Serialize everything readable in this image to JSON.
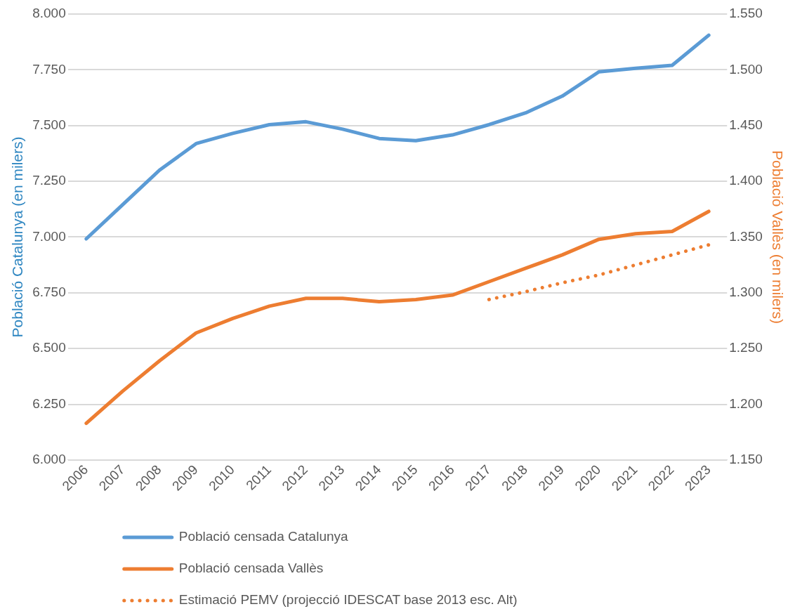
{
  "chart_data": {
    "type": "line",
    "categories": [
      "2006",
      "2007",
      "2008",
      "2009",
      "2010",
      "2011",
      "2012",
      "2013",
      "2014",
      "2015",
      "2016",
      "2017",
      "2018",
      "2019",
      "2020",
      "2021",
      "2022",
      "2023"
    ],
    "series": [
      {
        "name": "Població censada Catalunya",
        "color": "#5b9bd5",
        "line_style": "solid",
        "values": [
          6992,
          7146,
          7300,
          7419,
          7465,
          7504,
          7517,
          7484,
          7442,
          7432,
          7458,
          7504,
          7557,
          7632,
          7741,
          7757,
          7770,
          7905
        ]
      },
      {
        "name": "Població censada Vallès",
        "color": "#ed7d31",
        "axis": "y2",
        "line_style": "solid",
        "values": [
          1183,
          1212,
          1239,
          1264,
          1277,
          1288,
          1295,
          1295,
          1292,
          1294,
          1298,
          1310,
          1322,
          1334,
          1348,
          1353,
          1355,
          1373
        ]
      },
      {
        "name": "Estimació PEMV (projecció IDESCAT base 2013 esc. Alt)",
        "color": "#ed7d31",
        "axis": "y2",
        "line_style": "dotted",
        "values": [
          null,
          null,
          null,
          null,
          null,
          null,
          null,
          null,
          null,
          null,
          null,
          1294,
          1301,
          1309,
          1316,
          1325,
          1334,
          1343
        ]
      }
    ],
    "ylabel": "Població Catalunya (en milers)",
    "y2label": "Població Vallès (en milers)",
    "ylim": [
      6000,
      8000
    ],
    "yticks": [
      {
        "value": 6000,
        "label": "6.000"
      },
      {
        "value": 6250,
        "label": "6.250"
      },
      {
        "value": 6500,
        "label": "6.500"
      },
      {
        "value": 6750,
        "label": "6.750"
      },
      {
        "value": 7000,
        "label": "7.000"
      },
      {
        "value": 7250,
        "label": "7.250"
      },
      {
        "value": 7500,
        "label": "7.500"
      },
      {
        "value": 7750,
        "label": "7.750"
      },
      {
        "value": 8000,
        "label": "8.000"
      }
    ],
    "y2lim": [
      1150,
      1550
    ],
    "y2ticks": [
      {
        "value": 1150,
        "label": "1.150"
      },
      {
        "value": 1200,
        "label": "1.200"
      },
      {
        "value": 1250,
        "label": "1.250"
      },
      {
        "value": 1300,
        "label": "1.300"
      },
      {
        "value": 1350,
        "label": "1.350"
      },
      {
        "value": 1400,
        "label": "1.400"
      },
      {
        "value": 1450,
        "label": "1.450"
      },
      {
        "value": 1500,
        "label": "1.500"
      },
      {
        "value": 1550,
        "label": "1.550"
      }
    ],
    "grid": "y",
    "legend": "bottom"
  }
}
